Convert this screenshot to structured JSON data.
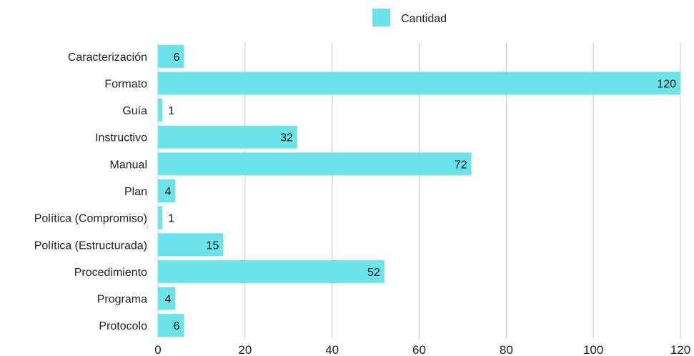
{
  "chart_data": {
    "type": "bar",
    "orientation": "horizontal",
    "categories": [
      "Caracterización",
      "Formato",
      "Guía",
      "Instructivo",
      "Manual",
      "Plan",
      "Política (Compromiso)",
      "Política (Estructurada)",
      "Procedimiento",
      "Programa",
      "Protocolo"
    ],
    "series": [
      {
        "name": "Cantidad",
        "values": [
          6,
          120,
          1,
          32,
          72,
          4,
          1,
          15,
          52,
          4,
          6
        ],
        "color": "#6ae4ea"
      }
    ],
    "xlim": [
      0,
      120
    ],
    "xticks": [
      "0",
      "20",
      "40",
      "60",
      "80",
      "100",
      "120"
    ],
    "grid": "vertical",
    "legend_position": "top-center"
  }
}
